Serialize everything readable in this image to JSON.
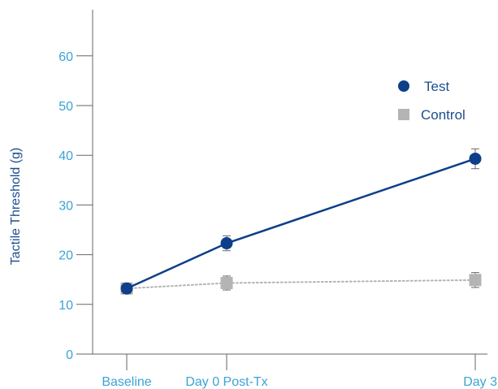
{
  "chart_data": {
    "type": "line",
    "title": "",
    "xlabel": "",
    "ylabel": "Tactile Threshold (g)",
    "ylim": [
      0,
      70
    ],
    "yticks": [
      0,
      10,
      20,
      30,
      40,
      50,
      60
    ],
    "x_days": [
      -1,
      0,
      3
    ],
    "categories": [
      "Baseline",
      "Day 0 Post-Tx",
      "Day 3"
    ],
    "legend_position": "upper-right",
    "grid": false,
    "series": [
      {
        "name": "Test",
        "marker": "circle",
        "line": "solid",
        "color": "#0d3f8a",
        "values": [
          13.2,
          22.3,
          39.3
        ],
        "errors": [
          1.0,
          1.5,
          2.0
        ]
      },
      {
        "name": "Control",
        "marker": "square",
        "line": "dotted",
        "color": "#b4b4b4",
        "values": [
          13.2,
          14.3,
          14.9
        ],
        "errors": [
          1.0,
          1.4,
          1.5
        ]
      }
    ]
  }
}
